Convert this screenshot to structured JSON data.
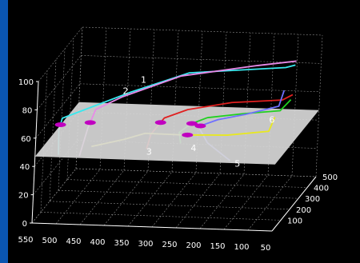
{
  "chart_data": {
    "type": "line",
    "projection": "3d",
    "grid": true,
    "axes": {
      "x": {
        "ticks": [
          "550",
          "500",
          "450",
          "400",
          "350",
          "300",
          "250",
          "200",
          "150",
          "100",
          "50"
        ]
      },
      "y": {
        "ticks": [
          "500",
          "400",
          "300",
          "200",
          "100"
        ]
      },
      "z": {
        "ticks": [
          "0",
          "20",
          "40",
          "60",
          "80",
          "100"
        ]
      }
    },
    "plane": {
      "z": 47,
      "color": "#d8d8d8"
    },
    "series_labels": [
      "1",
      "2",
      "3",
      "4",
      "5",
      "6"
    ],
    "colors": {
      "series1": "#38e8ee",
      "series2": "#e88ae8",
      "series3": "#e02020",
      "series4": "#20d020",
      "series5": "#7070ff",
      "series6": "#e8e820",
      "marker": "#c000c0"
    },
    "series": [
      {
        "label": "1",
        "color": "#38e8ee",
        "points": [
          [
            560,
            340,
            22
          ],
          [
            560,
            330,
            40
          ],
          [
            540,
            250,
            55
          ],
          [
            400,
            250,
            75
          ],
          [
            280,
            250,
            90
          ],
          [
            80,
            250,
            96
          ],
          [
            60,
            250,
            98
          ]
        ]
      },
      {
        "label": "2",
        "color": "#e88ae8",
        "points": [
          [
            520,
            360,
            20
          ],
          [
            500,
            330,
            42
          ],
          [
            480,
            300,
            58
          ],
          [
            420,
            270,
            70
          ],
          [
            300,
            270,
            86
          ],
          [
            140,
            260,
            96
          ],
          [
            60,
            260,
            100
          ]
        ]
      },
      {
        "label": "3",
        "color": "#e02020",
        "points": [
          [
            400,
            470,
            18
          ],
          [
            380,
            400,
            34
          ],
          [
            340,
            320,
            52
          ],
          [
            280,
            250,
            64
          ],
          [
            180,
            200,
            74
          ],
          [
            60,
            110,
            84
          ],
          [
            30,
            60,
            92
          ]
        ]
      },
      {
        "label": "4",
        "color": "#20d020",
        "points": [
          [
            340,
            530,
            18
          ],
          [
            330,
            450,
            32
          ],
          [
            290,
            350,
            46
          ],
          [
            240,
            260,
            58
          ],
          [
            150,
            180,
            68
          ],
          [
            60,
            90,
            78
          ],
          [
            30,
            40,
            90
          ]
        ]
      },
      {
        "label": "5",
        "color": "#7070ff",
        "points": [
          [
            220,
            440,
            14
          ],
          [
            260,
            390,
            30
          ],
          [
            270,
            330,
            46
          ],
          [
            220,
            270,
            56
          ],
          [
            150,
            200,
            66
          ],
          [
            70,
            130,
            78
          ],
          [
            50,
            70,
            94
          ]
        ]
      },
      {
        "label": "6",
        "color": "#e8e820",
        "points": [
          [
            520,
            500,
            16
          ],
          [
            440,
            420,
            28
          ],
          [
            380,
            330,
            40
          ],
          [
            290,
            250,
            46
          ],
          [
            180,
            160,
            54
          ],
          [
            80,
            80,
            64
          ],
          [
            60,
            30,
            78
          ]
        ]
      }
    ]
  }
}
